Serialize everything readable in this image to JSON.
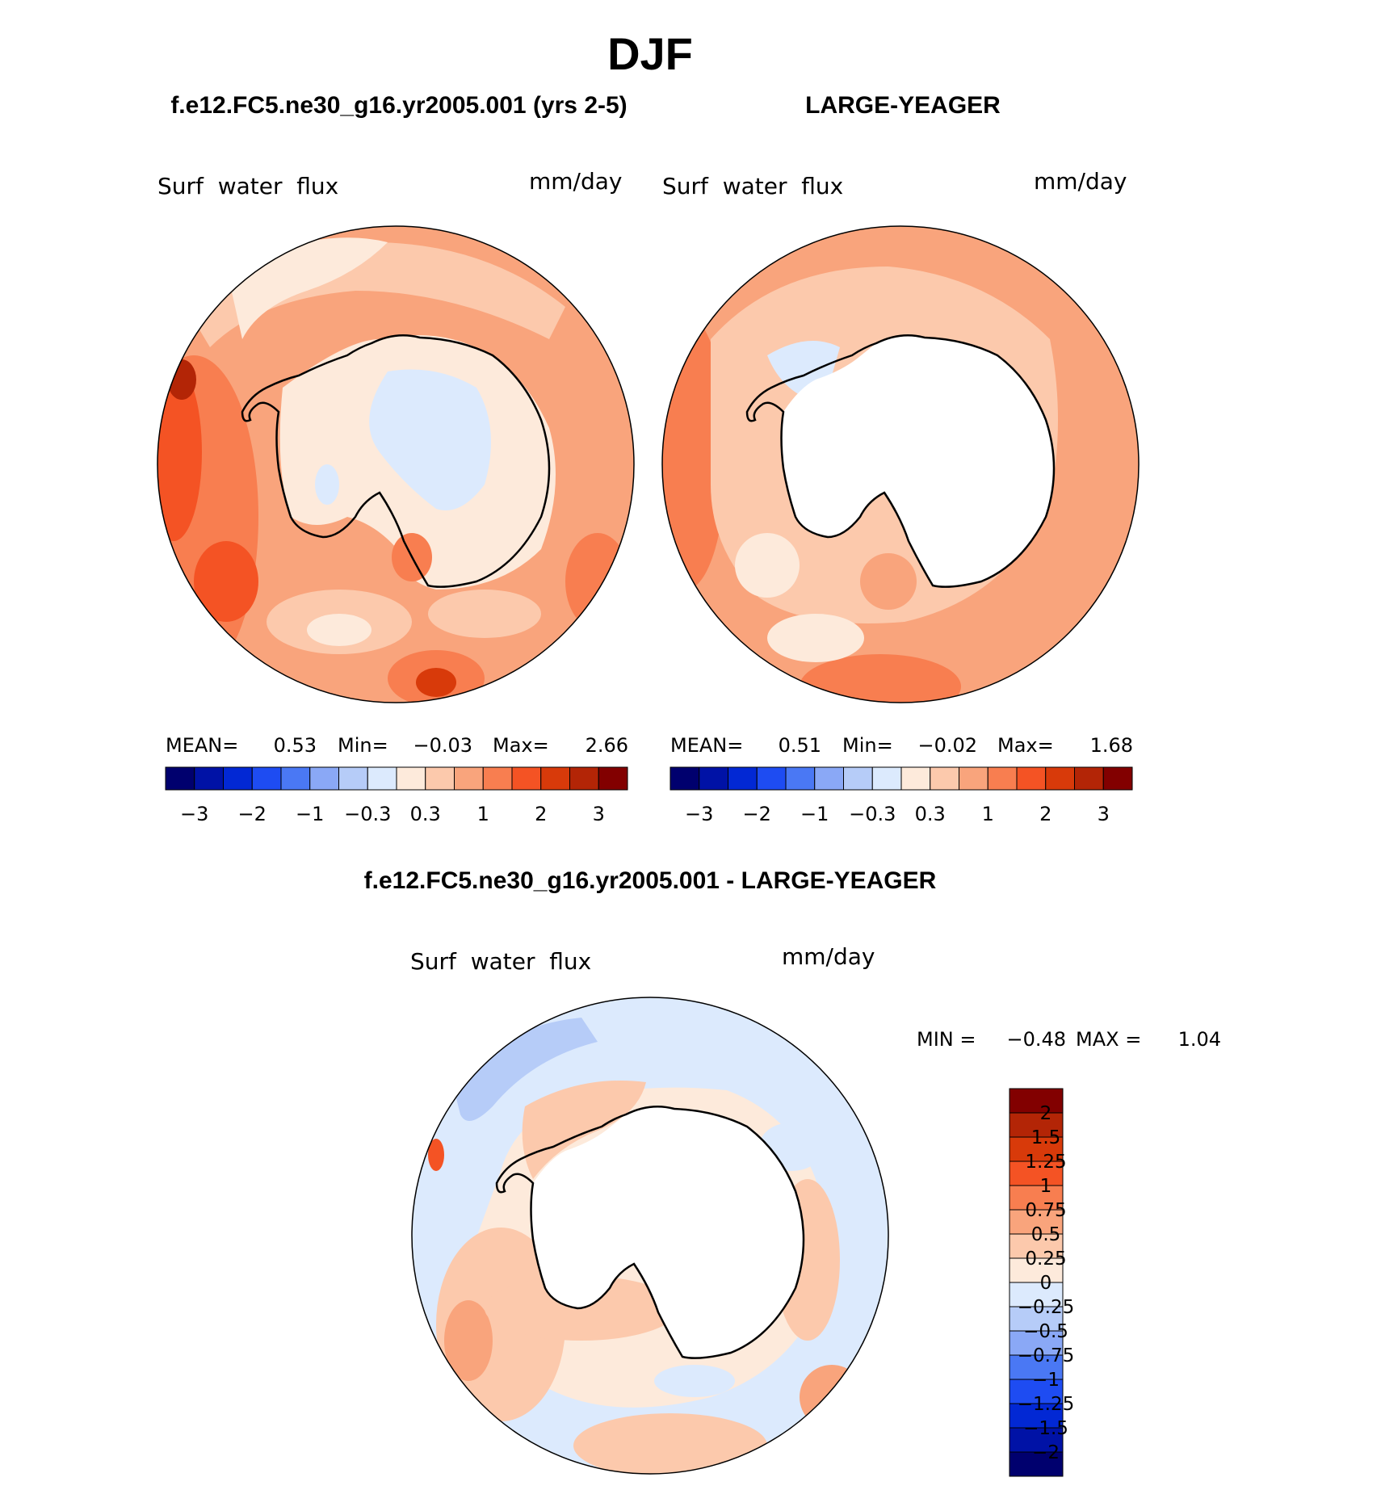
{
  "page": {
    "title": "DJF",
    "left_title": "f.e12.FC5.ne30_g16.yr2005.001 (yrs 2-5)",
    "right_title": "LARGE-YEAGER",
    "diff_title": "f.e12.FC5.ne30_g16.yr2005.001 - LARGE-YEAGER"
  },
  "panels": {
    "left": {
      "variable": "Surf  water  flux",
      "units": "mm/day",
      "stats": {
        "mean_label": "MEAN=",
        "mean": "0.53",
        "min_label": "Min=",
        "min": "−0.03",
        "max_label": "Max=",
        "max": "2.66"
      }
    },
    "right": {
      "variable": "Surf  water  flux",
      "units": "mm/day",
      "stats": {
        "mean_label": "MEAN=",
        "mean": "0.51",
        "min_label": "Min=",
        "min": "−0.02",
        "max_label": "Max=",
        "max": "1.68"
      }
    },
    "diff": {
      "variable": "Surf  water  flux",
      "units": "mm/day",
      "stats": {
        "min_label": "MIN =",
        "min": "−0.48",
        "max_label": "MAX =",
        "max": "1.04"
      }
    }
  },
  "colorbar_top": {
    "colors": [
      "#00006e",
      "#0012a6",
      "#0228d4",
      "#1e4cf2",
      "#4a78f4",
      "#8aa8f6",
      "#b6ccf8",
      "#dceafd",
      "#fdeadb",
      "#fcc9ac",
      "#f9a47c",
      "#f87e50",
      "#f45324",
      "#d83a0a",
      "#b32506",
      "#820000"
    ],
    "labels": [
      "−3",
      "−2",
      "−1",
      "−0.3",
      "0.3",
      "1",
      "2",
      "3"
    ]
  },
  "colorbar_diff": {
    "colors": [
      "#820000",
      "#b32506",
      "#d83a0a",
      "#f45324",
      "#f87e50",
      "#f9a47c",
      "#fcc9ac",
      "#fdeadb",
      "#dceafd",
      "#b6ccf8",
      "#8aa8f6",
      "#4a78f4",
      "#1e4cf2",
      "#0228d4",
      "#0012a6",
      "#00006e"
    ],
    "labels": [
      "2",
      "1.5",
      "1.25",
      "1",
      "0.75",
      "0.5",
      "0.25",
      "0",
      "−0.25",
      "−0.5",
      "−0.75",
      "−1",
      "−1.25",
      "−1.5",
      "−2"
    ]
  }
}
